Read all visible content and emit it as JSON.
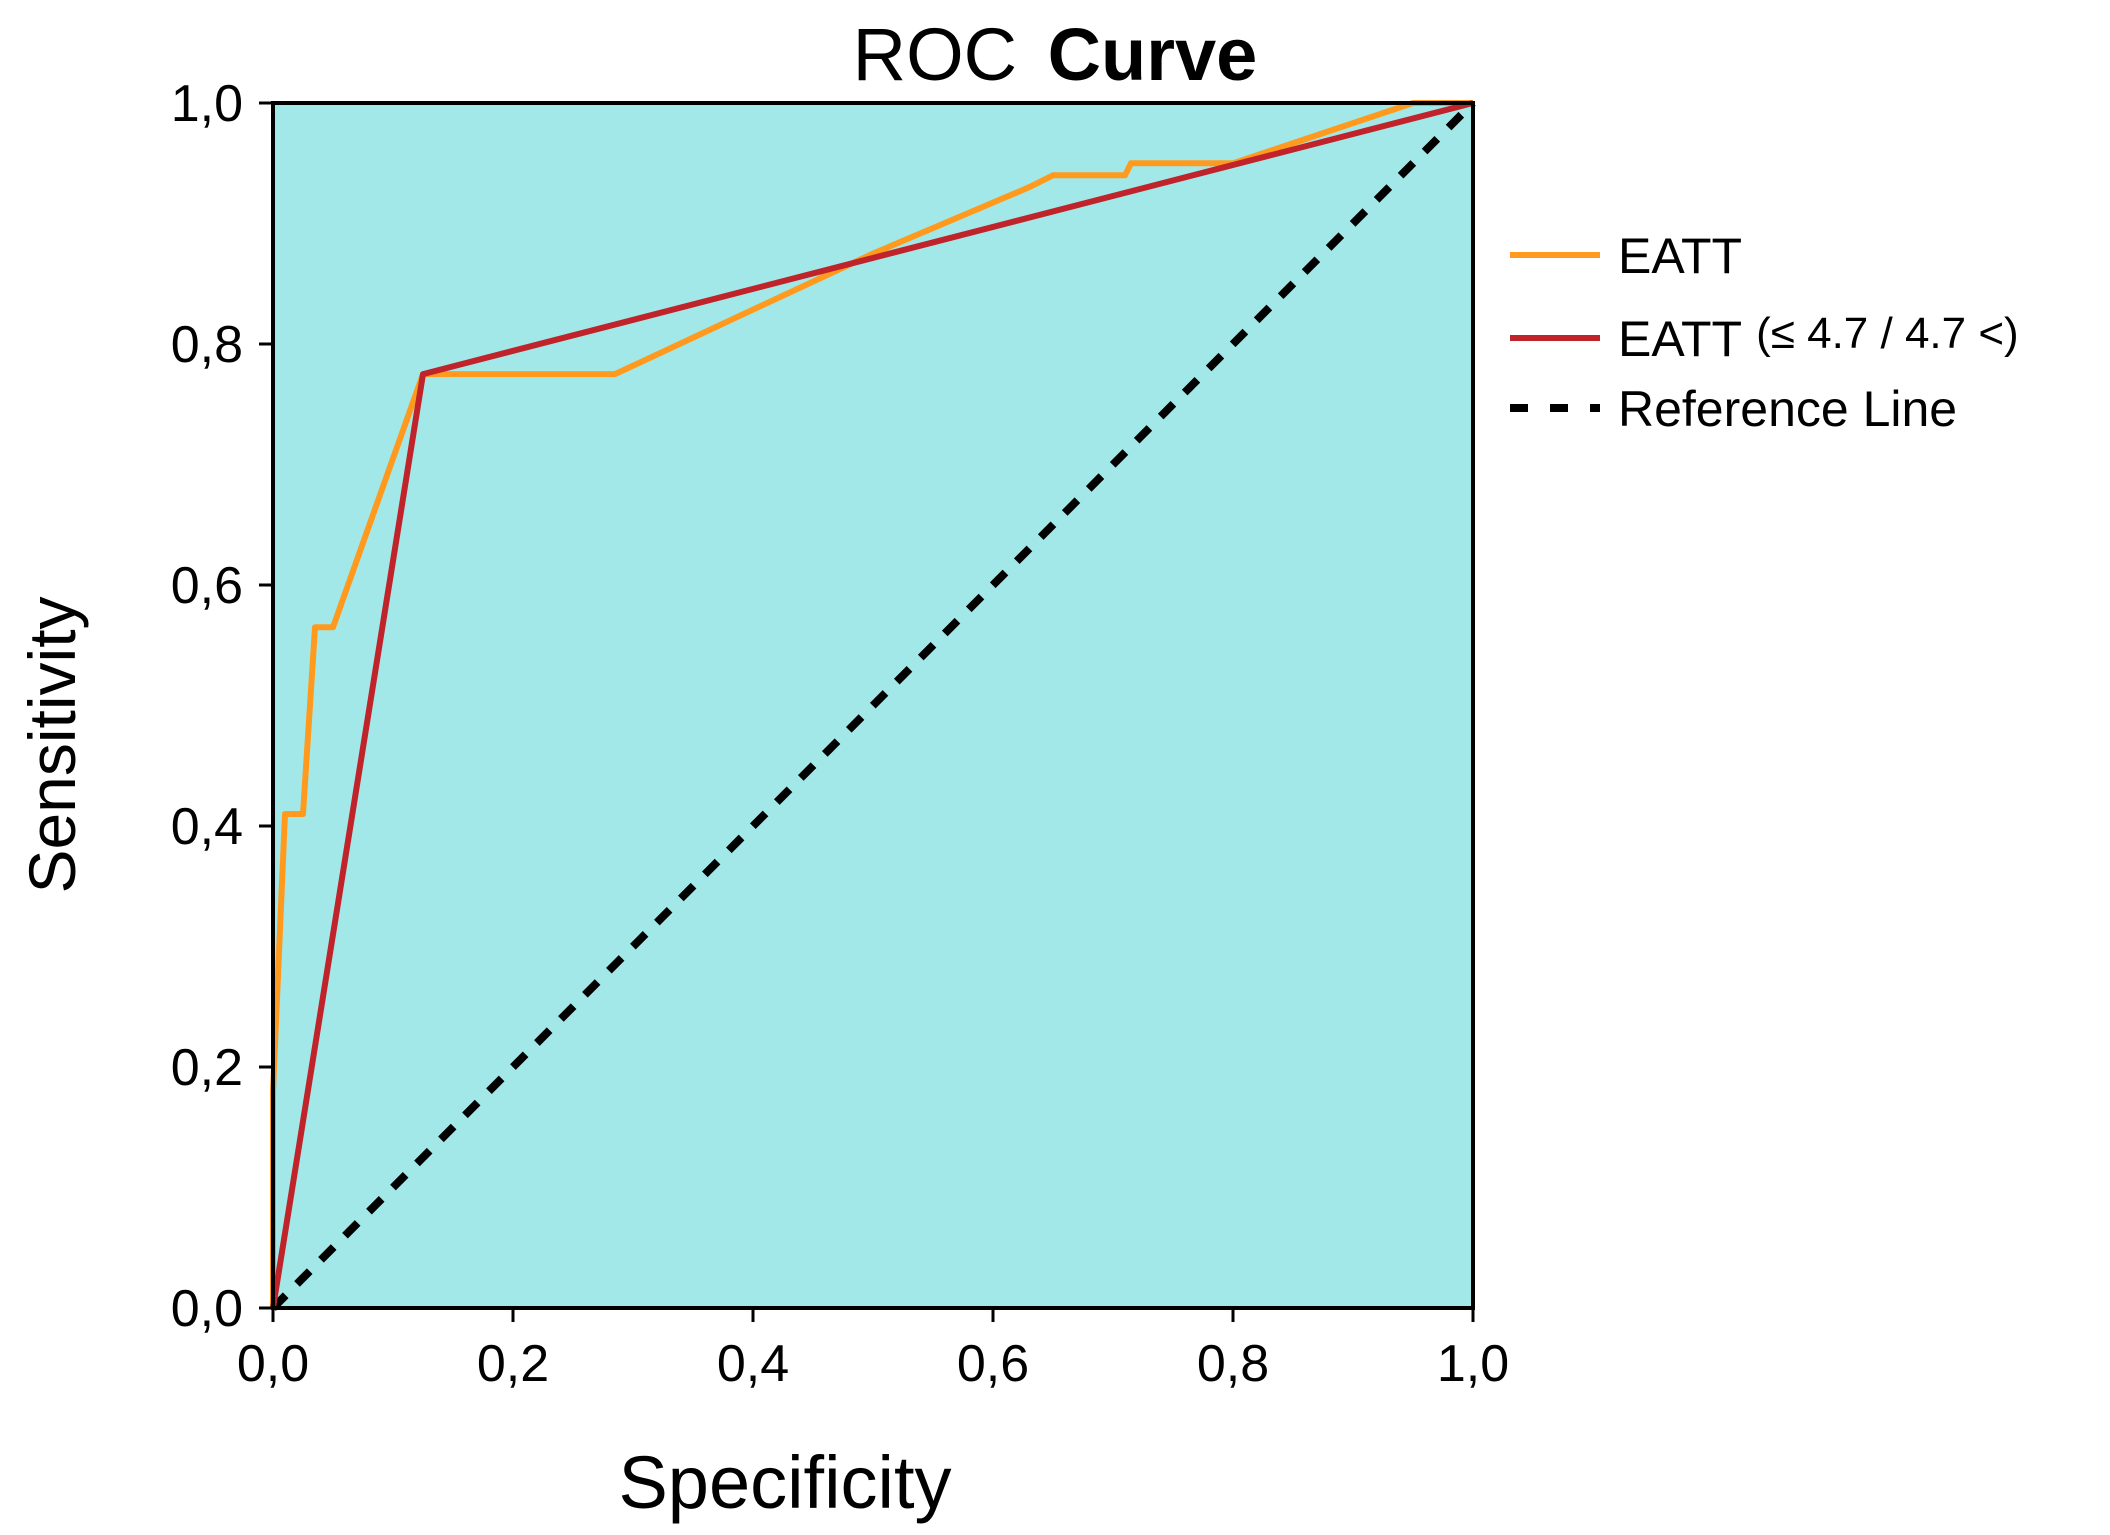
{
  "chart_data": {
    "type": "line",
    "title_part1": "ROC",
    "title_part2": "Curve",
    "xlabel": "Specificity",
    "ylabel": "Sensitivity",
    "xlim": [
      0,
      1
    ],
    "ylim": [
      0,
      1
    ],
    "ticks": [
      0,
      0.2,
      0.4,
      0.6,
      0.8,
      1.0
    ],
    "tick_labels": [
      "0,0",
      "0,2",
      "0,4",
      "0,6",
      "0,8",
      "1,0"
    ],
    "background_color": "#a3e8e8",
    "series": [
      {
        "name": "EATT",
        "color": "#ff9a1f",
        "style": "solid",
        "points": [
          [
            0,
            0
          ],
          [
            0,
            0.18
          ],
          [
            0.01,
            0.41
          ],
          [
            0.025,
            0.41
          ],
          [
            0.035,
            0.565
          ],
          [
            0.05,
            0.565
          ],
          [
            0.125,
            0.775
          ],
          [
            0.14,
            0.775
          ],
          [
            0.285,
            0.775
          ],
          [
            0.5,
            0.875
          ],
          [
            0.63,
            0.93
          ],
          [
            0.65,
            0.94
          ],
          [
            0.71,
            0.94
          ],
          [
            0.715,
            0.95
          ],
          [
            0.8,
            0.95
          ],
          [
            0.95,
            1.0
          ],
          [
            1,
            1
          ]
        ]
      },
      {
        "name": "EATT",
        "name_suffix": "(≤ 4.7 / 4.7 <)",
        "color": "#c0242a",
        "style": "solid",
        "points": [
          [
            0,
            0
          ],
          [
            0.125,
            0.775
          ],
          [
            1,
            1
          ]
        ]
      },
      {
        "name": "Reference Line",
        "color": "#000000",
        "style": "dashed",
        "points": [
          [
            0,
            0
          ],
          [
            1,
            1
          ]
        ]
      }
    ]
  }
}
